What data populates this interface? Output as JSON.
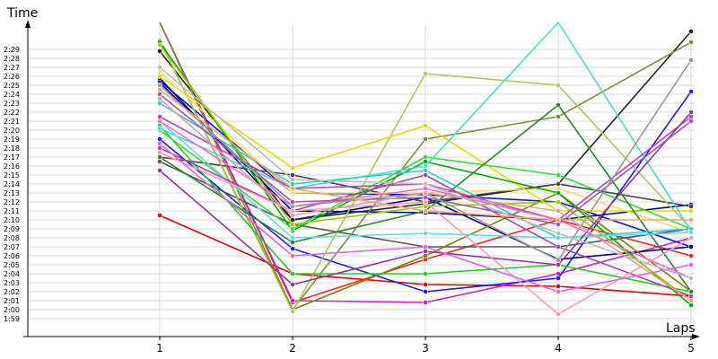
{
  "chart_data": {
    "type": "line",
    "title": "",
    "xlabel": "Laps",
    "ylabel": "Time",
    "x": [
      1,
      2,
      3,
      4,
      5
    ],
    "x_tick_labels": [
      "1",
      "2",
      "3",
      "4",
      "5"
    ],
    "y_unit_note": "lap time in seconds; tick labels shown as m:ss",
    "ylim": [
      118,
      151
    ],
    "y_ticks": [
      119,
      120,
      121,
      122,
      123,
      124,
      125,
      126,
      127,
      128,
      129,
      130,
      131,
      132,
      133,
      134,
      135,
      136,
      137,
      138,
      139,
      140,
      141,
      142,
      143,
      144,
      145,
      146,
      147,
      148,
      149
    ],
    "y_tick_labels": [
      "1:59",
      "2:00",
      "2:01",
      "2:02",
      "2:03",
      "2:04",
      "2:05",
      "2:06",
      "2:07",
      "2:08",
      "2:09",
      "2:10",
      "2:11",
      "2:12",
      "2:13",
      "2:14",
      "2:15",
      "2:16",
      "2:17",
      "2:18",
      "2:19",
      "2:20",
      "2:21",
      "2:22",
      "2:23",
      "2:24",
      "2:25",
      "2:26",
      "2:27",
      "2:28",
      "2:29"
    ],
    "grid": true,
    "legend": "none",
    "series": [
      {
        "color": "#e60000",
        "values": [
          130.5,
          124.0,
          122.8,
          122.6,
          121.5
        ]
      },
      {
        "color": "#ff2020",
        "values": [
          152.0,
          120.8,
          125.6,
          130.0,
          126.0
        ]
      },
      {
        "color": "#cc22cc",
        "values": [
          152.0,
          121.0,
          120.8,
          124.0,
          128.0
        ]
      },
      {
        "color": "#1a1aff",
        "values": [
          139.0,
          126.8,
          122.0,
          123.5,
          144.3
        ]
      },
      {
        "color": "#0000aa",
        "values": [
          145.3,
          131.0,
          130.8,
          130.0,
          131.7
        ]
      },
      {
        "color": "#1111dd",
        "values": [
          145.5,
          133.0,
          132.8,
          132.0,
          127.0
        ]
      },
      {
        "color": "#00008b",
        "values": [
          145.8,
          130.0,
          132.5,
          125.6,
          127.0
        ]
      },
      {
        "color": "#222222",
        "values": [
          148.8,
          130.0,
          131.8,
          134.0,
          151.0
        ]
      },
      {
        "color": "#444444",
        "values": [
          137.0,
          135.0,
          132.0,
          134.0,
          131.5
        ]
      },
      {
        "color": "#555555",
        "values": [
          136.5,
          129.5,
          127.0,
          127.0,
          129.0
        ]
      },
      {
        "color": "#8a8a3a",
        "values": [
          152.0,
          120.0,
          139.0,
          141.5,
          149.8
        ]
      },
      {
        "color": "#808000",
        "values": [
          150.0,
          120.0,
          126.0,
          133.0,
          122.0
        ]
      },
      {
        "color": "#a9c95a",
        "values": [
          150.0,
          119.8,
          146.3,
          145.0,
          129.0
        ]
      },
      {
        "color": "#e8d800",
        "values": [
          146.0,
          135.8,
          140.5,
          131.0,
          131.0
        ]
      },
      {
        "color": "#f0e060",
        "values": [
          146.5,
          133.0,
          133.0,
          133.5,
          128.6
        ]
      },
      {
        "color": "#00aa00",
        "values": [
          149.8,
          128.8,
          136.5,
          133.0,
          120.5
        ]
      },
      {
        "color": "#22cc22",
        "values": [
          140.5,
          124.0,
          124.0,
          125.0,
          122.0
        ]
      },
      {
        "color": "#33dd33",
        "values": [
          140.0,
          129.0,
          137.0,
          135.0,
          129.0
        ]
      },
      {
        "color": "#228b22",
        "values": [
          137.0,
          127.5,
          131.0,
          142.8,
          122.0
        ]
      },
      {
        "color": "#99cc00",
        "values": [
          149.5,
          129.5,
          131.5,
          132.0,
          121.0
        ]
      },
      {
        "color": "#40e0d0",
        "values": [
          140.2,
          133.5,
          136.0,
          152.0,
          128.8
        ]
      },
      {
        "color": "#33cccc",
        "values": [
          143.0,
          134.0,
          135.5,
          128.0,
          129.0
        ]
      },
      {
        "color": "#66d9e8",
        "values": [
          141.0,
          128.0,
          128.5,
          128.0,
          128.6
        ]
      },
      {
        "color": "#c040c0",
        "values": [
          141.5,
          133.5,
          134.0,
          130.0,
          141.5
        ]
      },
      {
        "color": "#993399",
        "values": [
          135.5,
          122.8,
          126.5,
          125.0,
          142.0
        ]
      },
      {
        "color": "#aa44aa",
        "values": [
          138.0,
          131.0,
          135.0,
          127.0,
          121.5
        ]
      },
      {
        "color": "#ff66cc",
        "values": [
          141.0,
          131.5,
          133.5,
          130.0,
          123.5
        ]
      },
      {
        "color": "#ff99bb",
        "values": [
          137.5,
          131.0,
          132.0,
          119.5,
          128.0
        ]
      },
      {
        "color": "#dd66dd",
        "values": [
          138.5,
          126.0,
          127.0,
          122.0,
          125.0
        ]
      },
      {
        "color": "#9b59b6",
        "values": [
          144.0,
          132.0,
          132.5,
          129.5,
          141.0
        ]
      },
      {
        "color": "#999999",
        "values": [
          145.0,
          131.5,
          133.0,
          125.5,
          147.8
        ]
      },
      {
        "color": "#bbbbbb",
        "values": [
          147.0,
          134.5,
          134.0,
          128.5,
          123.5
        ]
      },
      {
        "color": "#f4a460",
        "values": [
          144.5,
          133.5,
          131.0,
          130.0,
          130.0
        ]
      },
      {
        "color": "#e0a0a0",
        "values": [
          143.5,
          130.5,
          133.0,
          131.0,
          121.0
        ]
      }
    ]
  }
}
